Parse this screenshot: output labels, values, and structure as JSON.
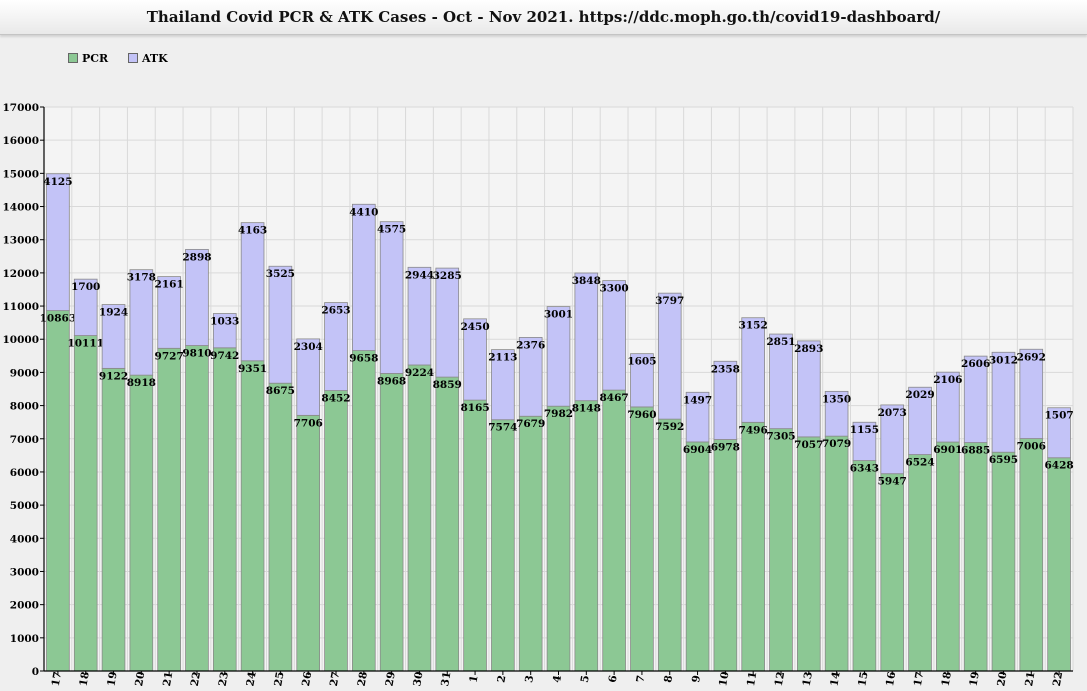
{
  "chart_data": {
    "type": "bar",
    "stacked": true,
    "title": "Thailand Covid PCR & ATK Cases - Oct - Nov 2021. https://ddc.moph.go.th/covid19-dashboard/",
    "xlabel": "",
    "ylabel": "",
    "ylim": [
      0,
      17000
    ],
    "ytick_step": 1000,
    "grid": true,
    "legend_position": "top-left",
    "categories": [
      "17",
      "18",
      "19",
      "20",
      "21",
      "22",
      "23",
      "24",
      "25",
      "26",
      "27",
      "28",
      "29",
      "30",
      "31",
      "1",
      "2",
      "3",
      "4",
      "5",
      "6",
      "7",
      "8",
      "9",
      "10",
      "11",
      "12",
      "13",
      "14",
      "15",
      "16",
      "17",
      "18",
      "19",
      "20",
      "21",
      "22"
    ],
    "series": [
      {
        "name": "PCR",
        "color": "#8cc894",
        "values": [
          10863,
          10111,
          9122,
          8918,
          9727,
          9810,
          9742,
          9351,
          8675,
          7706,
          8452,
          9658,
          8968,
          9224,
          8859,
          8165,
          7574,
          7679,
          7982,
          8148,
          8467,
          7960,
          7592,
          6904,
          6978,
          7496,
          7305,
          7057,
          7079,
          6343,
          5947,
          6524,
          6901,
          6885,
          6595,
          7006,
          6428
        ]
      },
      {
        "name": "ATK",
        "color": "#c3c3f7",
        "values": [
          4125,
          1700,
          1924,
          3178,
          2161,
          2898,
          1033,
          4163,
          3525,
          2304,
          2653,
          4410,
          4575,
          2944,
          3285,
          2450,
          2113,
          2376,
          3001,
          3848,
          3300,
          1605,
          3797,
          1497,
          2358,
          3152,
          2851,
          2893,
          1350,
          1155,
          2073,
          2029,
          2106,
          2606,
          3012,
          2692,
          1507
        ]
      }
    ]
  }
}
